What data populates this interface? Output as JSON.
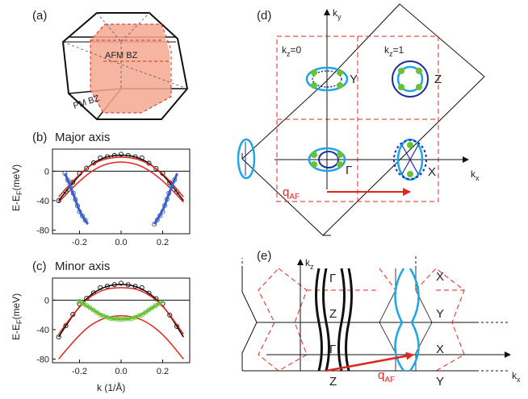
{
  "figure": {
    "panels": {
      "a": {
        "label": "(a)",
        "afm_bz": "AFM BZ",
        "pm_bz": "PM BZ"
      },
      "b": {
        "label": "(b)",
        "title": "Major axis"
      },
      "c": {
        "label": "(c)",
        "title": "Minor axis"
      },
      "d": {
        "label": "(d)",
        "ky": "k",
        "ky_sub": "y",
        "kx": "k",
        "kx_sub": "x",
        "kz0": "k",
        "kz0_sub": "z",
        "kz0_val": "=0",
        "kz1": "k",
        "kz1_sub": "z",
        "kz1_val": "=1",
        "Y": "Y",
        "Z": "Z",
        "Gamma": "Γ",
        "X": "X",
        "qaf": "q",
        "qaf_sub": "AF"
      },
      "e": {
        "label": "(e)",
        "kz": "k",
        "kz_sub": "z",
        "kx": "k",
        "kx_sub": "x",
        "X_top": "X",
        "Y_upper": "Y",
        "X_mid": "X",
        "Y_lower": "Y",
        "Gamma_top": "Γ",
        "Z_upper": "Z",
        "Gamma_mid": "Γ",
        "Z_lower": "Z",
        "qaf": "q",
        "qaf_sub": "AF"
      }
    },
    "dispersion_axes": {
      "ylabel": "E-E",
      "ylabel_sub": "F",
      "ylabel_unit": "(meV)",
      "xlabel": "k (1/Å)",
      "yticks": [
        "0",
        "-40",
        "-80"
      ],
      "xticks": [
        "-0.2",
        "0.0",
        "0.2"
      ]
    }
  },
  "chart_data": [
    {
      "type": "line",
      "panel": "b",
      "title": "Major axis",
      "xlabel": "k (1/Å)",
      "ylabel": "E-EF (meV)",
      "xlim": [
        -0.33,
        0.33
      ],
      "ylim": [
        -85,
        30
      ],
      "x_ticks": [
        -0.2,
        0.0,
        0.2
      ],
      "y_ticks": [
        0,
        -40,
        -80
      ],
      "series": [
        {
          "color": "#000000",
          "x": [
            -0.3,
            -0.2,
            -0.1,
            0,
            0.1,
            0.2,
            0.3
          ],
          "y": [
            -40,
            -3,
            18,
            23,
            18,
            -3,
            -40
          ]
        },
        {
          "color": "#e0261d",
          "x": [
            -0.3,
            -0.2,
            -0.1,
            0,
            0.1,
            0.2,
            0.3
          ],
          "y": [
            -35,
            -2,
            16,
            20,
            16,
            -2,
            -35
          ]
        },
        {
          "color": "#e0261d",
          "x": [
            -0.3,
            -0.2,
            -0.1,
            0,
            0.1,
            0.2,
            0.3
          ],
          "y": [
            -42,
            -12,
            8,
            14,
            8,
            -12,
            -42
          ]
        },
        {
          "color": "#3a5fc8",
          "x": [
            -0.27,
            -0.23,
            -0.2,
            -0.16
          ],
          "y": [
            -3,
            -30,
            -55,
            -72
          ]
        },
        {
          "color": "#3a5fc8",
          "x": [
            0.16,
            0.2,
            0.23,
            0.27
          ],
          "y": [
            -72,
            -55,
            -30,
            -3
          ]
        }
      ]
    },
    {
      "type": "line",
      "panel": "c",
      "title": "Minor axis",
      "xlabel": "k (1/Å)",
      "ylabel": "E-EF (meV)",
      "xlim": [
        -0.33,
        0.33
      ],
      "ylim": [
        -85,
        30
      ],
      "x_ticks": [
        -0.2,
        0.0,
        0.2
      ],
      "y_ticks": [
        0,
        -40,
        -80
      ],
      "series": [
        {
          "color": "#000000",
          "x": [
            -0.3,
            -0.2,
            -0.1,
            0,
            0.1,
            0.2,
            0.3
          ],
          "y": [
            -50,
            -5,
            17,
            23,
            17,
            -5,
            -50
          ]
        },
        {
          "color": "#e0261d",
          "x": [
            -0.3,
            -0.2,
            -0.1,
            0,
            0.1,
            0.2,
            0.3
          ],
          "y": [
            -46,
            -6,
            14,
            18,
            14,
            -6,
            -46
          ]
        },
        {
          "color": "#e0261d",
          "x": [
            -0.3,
            -0.2,
            -0.1,
            0,
            0.1,
            0.2,
            0.3
          ],
          "y": [
            -80,
            -45,
            -25,
            -20,
            -25,
            -45,
            -80
          ]
        },
        {
          "color": "#6ac134",
          "x": [
            -0.2,
            -0.15,
            -0.1,
            -0.05,
            0,
            0.05,
            0.1,
            0.15,
            0.2
          ],
          "y": [
            -2,
            -10,
            -20,
            -25,
            -26,
            -25,
            -20,
            -10,
            -2
          ]
        }
      ]
    }
  ]
}
